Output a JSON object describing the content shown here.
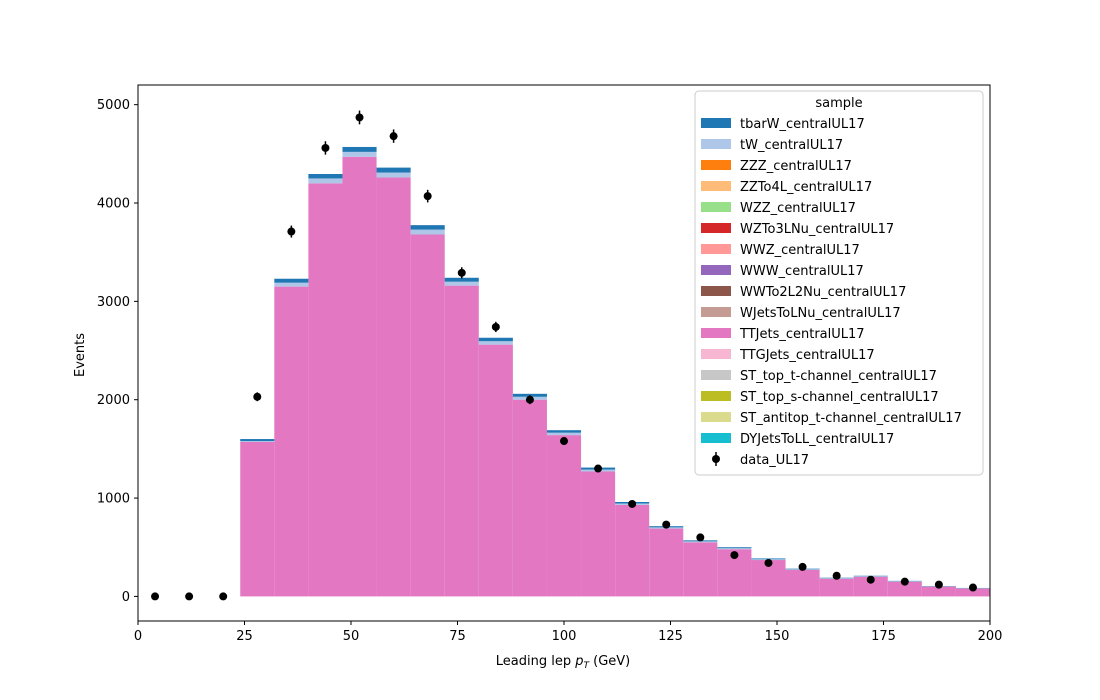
{
  "chart_data": {
    "type": "bar",
    "stacked": true,
    "xlabel_main": "Leading lep ",
    "xlabel_italic": "p",
    "xlabel_sub": "T",
    "xlabel_unit": " (GeV)",
    "ylabel": "Events",
    "xlim": [
      0,
      200
    ],
    "ylim": [
      -250,
      5200
    ],
    "xticks": [
      0,
      25,
      50,
      75,
      100,
      125,
      150,
      175,
      200
    ],
    "yticks": [
      0,
      1000,
      2000,
      3000,
      4000,
      5000
    ],
    "grid": false,
    "legend": {
      "title": "sample",
      "position": "upper right"
    },
    "bin_edges": [
      0,
      8,
      16,
      24,
      32,
      40,
      48,
      56,
      64,
      72,
      80,
      88,
      96,
      104,
      112,
      120,
      128,
      136,
      144,
      152,
      160,
      168,
      176,
      184,
      192,
      200
    ],
    "series": [
      {
        "name": "DYJetsToLL_centralUL17",
        "color": "#17becf",
        "values": [
          0,
          0,
          0,
          0,
          0,
          0,
          0,
          0,
          0,
          0,
          0,
          0,
          0,
          0,
          0,
          0,
          0,
          0,
          0,
          0,
          0,
          0,
          0,
          0,
          0
        ]
      },
      {
        "name": "ST_antitop_t-channel_centralUL17",
        "color": "#dbdb8d",
        "values": [
          0,
          0,
          0,
          0,
          0,
          0,
          0,
          0,
          0,
          0,
          0,
          0,
          0,
          0,
          0,
          0,
          0,
          0,
          0,
          0,
          0,
          0,
          0,
          0,
          0
        ]
      },
      {
        "name": "ST_top_s-channel_centralUL17",
        "color": "#bcbd22",
        "values": [
          0,
          0,
          0,
          0,
          0,
          0,
          0,
          0,
          0,
          0,
          0,
          0,
          0,
          0,
          0,
          0,
          0,
          0,
          0,
          0,
          0,
          0,
          0,
          0,
          0
        ]
      },
      {
        "name": "ST_top_t-channel_centralUL17",
        "color": "#c7c7c7",
        "values": [
          0,
          0,
          0,
          0,
          0,
          0,
          0,
          0,
          0,
          0,
          0,
          0,
          0,
          0,
          0,
          0,
          0,
          0,
          0,
          0,
          0,
          0,
          0,
          0,
          0
        ]
      },
      {
        "name": "TTGJets_centralUL17",
        "color": "#f7b6d2",
        "values": [
          0,
          0,
          0,
          0,
          0,
          0,
          0,
          0,
          0,
          0,
          0,
          0,
          0,
          0,
          0,
          0,
          0,
          0,
          0,
          0,
          0,
          0,
          0,
          0,
          0
        ]
      },
      {
        "name": "TTJets_centralUL17",
        "color": "#e377c2",
        "values": [
          0,
          0,
          0,
          1570,
          3150,
          4200,
          4470,
          4260,
          3680,
          3160,
          2560,
          2000,
          1640,
          1270,
          930,
          690,
          550,
          480,
          370,
          270,
          180,
          200,
          150,
          100,
          80
        ]
      },
      {
        "name": "WJetsToLNu_centralUL17",
        "color": "#c49c94",
        "values": [
          0,
          0,
          0,
          0,
          0,
          0,
          0,
          0,
          0,
          0,
          0,
          0,
          0,
          0,
          0,
          0,
          0,
          0,
          0,
          0,
          0,
          0,
          0,
          0,
          0
        ]
      },
      {
        "name": "WWTo2L2Nu_centralUL17",
        "color": "#8c564b",
        "values": [
          0,
          0,
          0,
          0,
          0,
          0,
          0,
          0,
          0,
          0,
          0,
          0,
          0,
          0,
          0,
          0,
          0,
          0,
          0,
          0,
          0,
          0,
          0,
          0,
          0
        ]
      },
      {
        "name": "WWW_centralUL17",
        "color": "#9467bd",
        "values": [
          0,
          0,
          0,
          0,
          0,
          0,
          0,
          0,
          0,
          0,
          0,
          0,
          0,
          0,
          0,
          0,
          0,
          0,
          0,
          0,
          0,
          0,
          0,
          0,
          0
        ]
      },
      {
        "name": "WWZ_centralUL17",
        "color": "#ff9896",
        "values": [
          0,
          0,
          0,
          0,
          0,
          0,
          0,
          0,
          0,
          0,
          0,
          0,
          0,
          0,
          0,
          0,
          0,
          0,
          0,
          0,
          0,
          0,
          0,
          0,
          0
        ]
      },
      {
        "name": "WZTo3LNu_centralUL17",
        "color": "#d62728",
        "values": [
          0,
          0,
          0,
          0,
          0,
          0,
          0,
          0,
          0,
          0,
          0,
          0,
          0,
          0,
          0,
          0,
          0,
          0,
          0,
          0,
          0,
          0,
          0,
          0,
          0
        ]
      },
      {
        "name": "WZZ_centralUL17",
        "color": "#98df8a",
        "values": [
          0,
          0,
          0,
          0,
          0,
          0,
          0,
          0,
          0,
          0,
          0,
          0,
          0,
          0,
          0,
          0,
          0,
          0,
          0,
          0,
          0,
          0,
          0,
          0,
          0
        ]
      },
      {
        "name": "ZZTo4L_centralUL17",
        "color": "#ffbb78",
        "values": [
          0,
          0,
          0,
          0,
          0,
          0,
          0,
          0,
          0,
          0,
          0,
          0,
          0,
          0,
          0,
          0,
          0,
          0,
          0,
          0,
          0,
          0,
          0,
          0,
          0
        ]
      },
      {
        "name": "ZZZ_centralUL17",
        "color": "#ff7f0e",
        "values": [
          0,
          0,
          0,
          0,
          0,
          0,
          0,
          0,
          0,
          0,
          0,
          0,
          0,
          0,
          0,
          0,
          0,
          0,
          0,
          0,
          0,
          0,
          0,
          0,
          0
        ]
      },
      {
        "name": "tW_centralUL17",
        "color": "#aec7e8",
        "values": [
          0,
          0,
          0,
          10,
          40,
          50,
          50,
          50,
          50,
          40,
          35,
          30,
          25,
          20,
          15,
          12,
          10,
          10,
          8,
          6,
          5,
          5,
          4,
          3,
          3
        ]
      },
      {
        "name": "tbarW_centralUL17",
        "color": "#1f77b4",
        "values": [
          0,
          0,
          0,
          20,
          40,
          45,
          50,
          50,
          45,
          40,
          35,
          30,
          25,
          20,
          15,
          12,
          10,
          10,
          8,
          6,
          5,
          5,
          4,
          3,
          3
        ]
      }
    ],
    "legend_order": [
      "tbarW_centralUL17",
      "tW_centralUL17",
      "ZZZ_centralUL17",
      "ZZTo4L_centralUL17",
      "WZZ_centralUL17",
      "WZTo3LNu_centralUL17",
      "WWZ_centralUL17",
      "WWW_centralUL17",
      "WWTo2L2Nu_centralUL17",
      "WJetsToLNu_centralUL17",
      "TTJets_centralUL17",
      "TTGJets_centralUL17",
      "ST_top_t-channel_centralUL17",
      "ST_top_s-channel_centralUL17",
      "ST_antitop_t-channel_centralUL17",
      "DYJetsToLL_centralUL17"
    ],
    "data_series": {
      "name": "data_UL17",
      "color": "#000000",
      "x": [
        4,
        12,
        20,
        28,
        36,
        44,
        52,
        60,
        68,
        76,
        84,
        92,
        100,
        108,
        116,
        124,
        132,
        140,
        148,
        156,
        164,
        172,
        180,
        188,
        196
      ],
      "y": [
        0,
        0,
        0,
        2030,
        3710,
        4560,
        4870,
        4680,
        4070,
        3290,
        2740,
        2000,
        1580,
        1300,
        940,
        730,
        600,
        420,
        340,
        300,
        210,
        170,
        150,
        120,
        90
      ],
      "err": [
        0,
        0,
        0,
        45,
        61,
        68,
        70,
        68,
        64,
        57,
        52,
        45,
        40,
        36,
        31,
        27,
        24,
        20,
        18,
        17,
        14,
        13,
        12,
        11,
        9
      ]
    }
  }
}
